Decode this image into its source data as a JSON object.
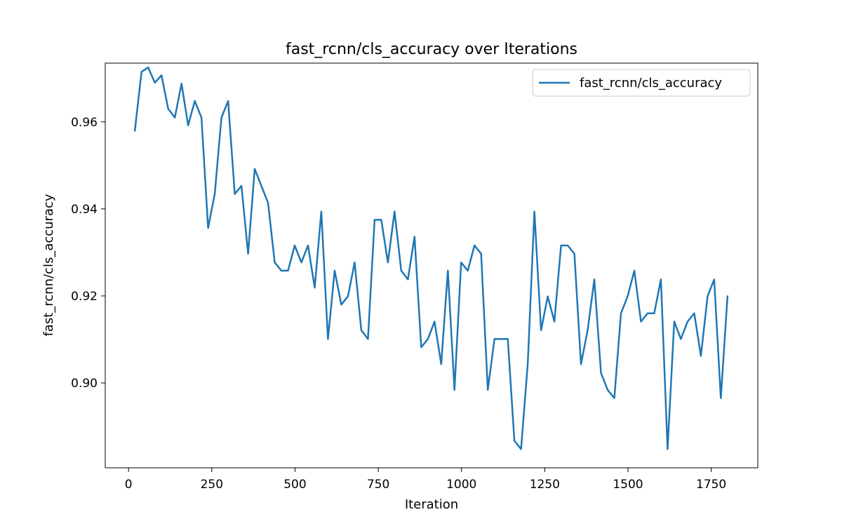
{
  "chart_data": {
    "type": "line",
    "title": "fast_rcnn/cls_accuracy over Iterations",
    "xlabel": "Iteration",
    "ylabel": "fast_rcnn/cls_accuracy",
    "xlim": [
      -70,
      1890
    ],
    "ylim": [
      0.8805,
      0.9735
    ],
    "xticks": [
      0,
      250,
      500,
      750,
      1000,
      1250,
      1500,
      1750
    ],
    "yticks": [
      0.9,
      0.92,
      0.94,
      0.96
    ],
    "xtick_labels": [
      "0",
      "250",
      "500",
      "750",
      "1000",
      "1250",
      "1500",
      "1750"
    ],
    "ytick_labels": [
      "0.90",
      "0.92",
      "0.94",
      "0.96"
    ],
    "grid": false,
    "legend": {
      "position": "top-right"
    },
    "color": "#1f77b4",
    "series": [
      {
        "name": "fast_rcnn/cls_accuracy",
        "x": [
          19,
          39,
          59,
          79,
          99,
          119,
          139,
          159,
          179,
          199,
          219,
          239,
          259,
          279,
          299,
          319,
          339,
          359,
          379,
          399,
          419,
          439,
          459,
          479,
          499,
          519,
          539,
          559,
          579,
          599,
          619,
          639,
          659,
          679,
          699,
          719,
          739,
          759,
          779,
          799,
          819,
          839,
          859,
          879,
          899,
          919,
          939,
          959,
          979,
          999,
          1019,
          1039,
          1059,
          1079,
          1099,
          1119,
          1139,
          1159,
          1179,
          1199,
          1219,
          1239,
          1259,
          1279,
          1299,
          1319,
          1339,
          1359,
          1379,
          1399,
          1419,
          1439,
          1459,
          1479,
          1499,
          1519,
          1539,
          1559,
          1579,
          1599,
          1619,
          1639,
          1659,
          1679,
          1699,
          1719,
          1739,
          1759,
          1779,
          1799
        ],
        "values": [
          0.958,
          0.9715,
          0.9725,
          0.969,
          0.9707,
          0.963,
          0.961,
          0.9688,
          0.9592,
          0.9648,
          0.961,
          0.9356,
          0.9435,
          0.961,
          0.9648,
          0.9434,
          0.9453,
          0.9297,
          0.9492,
          0.9453,
          0.9414,
          0.9277,
          0.9258,
          0.9258,
          0.9316,
          0.9277,
          0.9316,
          0.9219,
          0.9394,
          0.9101,
          0.9258,
          0.918,
          0.9199,
          0.9277,
          0.9121,
          0.9101,
          0.9375,
          0.9375,
          0.9277,
          0.9394,
          0.9258,
          0.9238,
          0.9336,
          0.9082,
          0.9101,
          0.9141,
          0.9043,
          0.9258,
          0.8984,
          0.9277,
          0.9258,
          0.9316,
          0.9297,
          0.8984,
          0.9101,
          0.9101,
          0.9101,
          0.8867,
          0.8848,
          0.9043,
          0.9394,
          0.9121,
          0.9199,
          0.9141,
          0.9316,
          0.9316,
          0.9297,
          0.9043,
          0.9121,
          0.9238,
          0.9023,
          0.8984,
          0.8965,
          0.916,
          0.9199,
          0.9258,
          0.9141,
          0.916,
          0.916,
          0.9238,
          0.8848,
          0.9141,
          0.9101,
          0.9141,
          0.916,
          0.9062,
          0.9199,
          0.9238,
          0.8965,
          0.9199
        ]
      }
    ]
  }
}
